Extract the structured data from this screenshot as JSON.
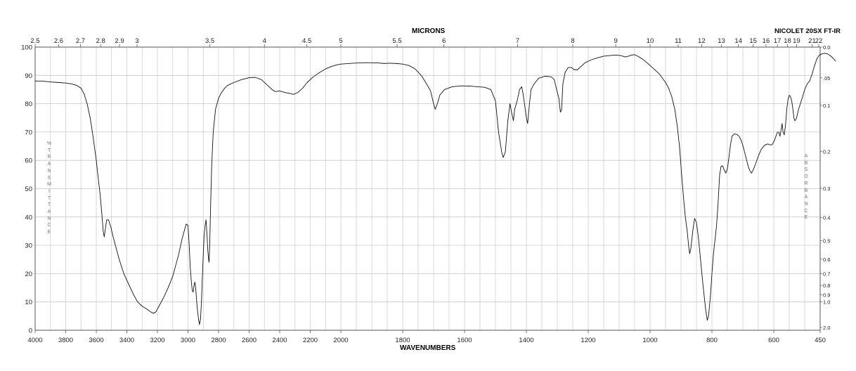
{
  "title_top": "MICRONS",
  "instrument": "NICOLET 20SX FT-IR",
  "xlabel": "WAVENUMBERS",
  "ylabel_left": "%\nT\nR\nA\nN\nS\nM\nI\nT\nT\nA\nN\nC\nE",
  "ylabel_right": "A\nB\nS\nO\nR\nB\nA\nN\nC\nE",
  "chart_data": {
    "type": "line",
    "title": "",
    "xlabel": "WAVENUMBERS",
    "ylabel": "% TRANSMITTANCE",
    "xlim": [
      4000,
      450
    ],
    "ylim": [
      0,
      100
    ],
    "x_axis_break": 2000,
    "grid": true,
    "x_ticks": [
      4000,
      3800,
      3600,
      3400,
      3200,
      3000,
      2800,
      2600,
      2400,
      2200,
      2000,
      1800,
      1600,
      1400,
      1200,
      1000,
      800,
      600,
      450
    ],
    "y_ticks": [
      0,
      10,
      20,
      30,
      40,
      50,
      60,
      70,
      80,
      90,
      100
    ],
    "micron_ticks": [
      {
        "label": "2.5",
        "value": 2.5
      },
      {
        "label": "2.6",
        "value": 2.6
      },
      {
        "label": "2.7",
        "value": 2.7
      },
      {
        "label": "2.8",
        "value": 2.8
      },
      {
        "label": "2.9",
        "value": 2.9
      },
      {
        "label": "3",
        "value": 3
      },
      {
        "label": "3.5",
        "value": 3.5
      },
      {
        "label": "4",
        "value": 4
      },
      {
        "label": "4.5",
        "value": 4.5
      },
      {
        "label": "5",
        "value": 5
      },
      {
        "label": "5.5",
        "value": 5.5
      },
      {
        "label": "6",
        "value": 6
      },
      {
        "label": "7",
        "value": 7
      },
      {
        "label": "8",
        "value": 8
      },
      {
        "label": "9",
        "value": 9
      },
      {
        "label": "10",
        "value": 10
      },
      {
        "label": "11",
        "value": 11
      },
      {
        "label": "12",
        "value": 12
      },
      {
        "label": "13",
        "value": 13
      },
      {
        "label": "14",
        "value": 14
      },
      {
        "label": "15",
        "value": 15
      },
      {
        "label": "16",
        "value": 16
      },
      {
        "label": "17",
        "value": 17
      },
      {
        "label": "18",
        "value": 18
      },
      {
        "label": "19",
        "value": 19
      },
      {
        "label": "21",
        "value": 21
      },
      {
        "label": "22",
        "value": 22
      }
    ],
    "absorbance_ticks": [
      {
        "label": "0.0",
        "value": 0.0
      },
      {
        "label": ".05",
        "value": 0.05
      },
      {
        "label": "0.1",
        "value": 0.1
      },
      {
        "label": "0.2",
        "value": 0.2
      },
      {
        "label": "0.3",
        "value": 0.3
      },
      {
        "label": "0.4",
        "value": 0.4
      },
      {
        "label": "0.5",
        "value": 0.5
      },
      {
        "label": "0.6",
        "value": 0.6
      },
      {
        "label": "0.7",
        "value": 0.7
      },
      {
        "label": "0.8",
        "value": 0.8
      },
      {
        "label": "0.9",
        "value": 0.9
      },
      {
        "label": "1.0",
        "value": 1.0
      },
      {
        "label": "2.0",
        "value": 2.0
      }
    ],
    "series": [
      {
        "points": [
          [
            4000,
            88
          ],
          [
            3960,
            88
          ],
          [
            3900,
            87.7
          ],
          [
            3850,
            87.5
          ],
          [
            3800,
            87.3
          ],
          [
            3760,
            87
          ],
          [
            3730,
            86.5
          ],
          [
            3700,
            85.5
          ],
          [
            3680,
            83.5
          ],
          [
            3660,
            80
          ],
          [
            3640,
            75
          ],
          [
            3620,
            68
          ],
          [
            3600,
            60
          ],
          [
            3590,
            55
          ],
          [
            3575,
            48
          ],
          [
            3562,
            40
          ],
          [
            3555,
            35
          ],
          [
            3548,
            33
          ],
          [
            3540,
            36
          ],
          [
            3532,
            39
          ],
          [
            3520,
            39
          ],
          [
            3505,
            36.5
          ],
          [
            3490,
            33
          ],
          [
            3470,
            29
          ],
          [
            3450,
            25
          ],
          [
            3420,
            20
          ],
          [
            3390,
            16.5
          ],
          [
            3360,
            13
          ],
          [
            3330,
            10
          ],
          [
            3300,
            8.5
          ],
          [
            3270,
            7.5
          ],
          [
            3245,
            6.5
          ],
          [
            3225,
            6
          ],
          [
            3210,
            6.5
          ],
          [
            3190,
            8.5
          ],
          [
            3160,
            11.5
          ],
          [
            3130,
            15
          ],
          [
            3100,
            19
          ],
          [
            3080,
            23
          ],
          [
            3060,
            27
          ],
          [
            3040,
            32
          ],
          [
            3025,
            35
          ],
          [
            3012,
            37.5
          ],
          [
            3000,
            37
          ],
          [
            2992,
            30
          ],
          [
            2985,
            22
          ],
          [
            2978,
            17
          ],
          [
            2972,
            14
          ],
          [
            2966,
            13.5
          ],
          [
            2960,
            16
          ],
          [
            2955,
            17
          ],
          [
            2950,
            15
          ],
          [
            2940,
            8
          ],
          [
            2930,
            3.5
          ],
          [
            2925,
            2
          ],
          [
            2918,
            4
          ],
          [
            2912,
            10
          ],
          [
            2905,
            20
          ],
          [
            2895,
            33
          ],
          [
            2888,
            37
          ],
          [
            2882,
            39
          ],
          [
            2876,
            34
          ],
          [
            2870,
            28
          ],
          [
            2865,
            25
          ],
          [
            2862,
            24
          ],
          [
            2858,
            30
          ],
          [
            2852,
            44
          ],
          [
            2845,
            58
          ],
          [
            2835,
            70
          ],
          [
            2820,
            78
          ],
          [
            2800,
            82
          ],
          [
            2780,
            84
          ],
          [
            2760,
            85.5
          ],
          [
            2740,
            86.5
          ],
          [
            2700,
            87.5
          ],
          [
            2650,
            88.5
          ],
          [
            2600,
            89.2
          ],
          [
            2560,
            89.3
          ],
          [
            2520,
            88.5
          ],
          [
            2480,
            86.5
          ],
          [
            2450,
            85
          ],
          [
            2430,
            84.3
          ],
          [
            2400,
            84.5
          ],
          [
            2370,
            84
          ],
          [
            2340,
            83.7
          ],
          [
            2310,
            83.3
          ],
          [
            2280,
            84
          ],
          [
            2250,
            85.5
          ],
          [
            2220,
            87.5
          ],
          [
            2180,
            89.5
          ],
          [
            2140,
            91
          ],
          [
            2100,
            92.3
          ],
          [
            2060,
            93.2
          ],
          [
            2020,
            93.8
          ],
          [
            2000,
            94
          ],
          [
            1960,
            94.3
          ],
          [
            1920,
            94.5
          ],
          [
            1880,
            94.4
          ],
          [
            1860,
            94.2
          ],
          [
            1840,
            94.3
          ],
          [
            1820,
            94.2
          ],
          [
            1800,
            94
          ],
          [
            1780,
            93.5
          ],
          [
            1760,
            92.3
          ],
          [
            1740,
            90
          ],
          [
            1720,
            86.5
          ],
          [
            1710,
            84.5
          ],
          [
            1700,
            80
          ],
          [
            1695,
            78
          ],
          [
            1688,
            80
          ],
          [
            1680,
            83
          ],
          [
            1665,
            85
          ],
          [
            1640,
            86
          ],
          [
            1610,
            86.3
          ],
          [
            1580,
            86.2
          ],
          [
            1560,
            86
          ],
          [
            1535,
            85.8
          ],
          [
            1515,
            85
          ],
          [
            1500,
            81
          ],
          [
            1490,
            70
          ],
          [
            1480,
            63
          ],
          [
            1475,
            61
          ],
          [
            1468,
            63
          ],
          [
            1460,
            74
          ],
          [
            1453,
            80
          ],
          [
            1448,
            77
          ],
          [
            1442,
            74
          ],
          [
            1438,
            78
          ],
          [
            1430,
            81
          ],
          [
            1422,
            85
          ],
          [
            1415,
            86
          ],
          [
            1410,
            83
          ],
          [
            1400,
            75
          ],
          [
            1396,
            73
          ],
          [
            1390,
            80
          ],
          [
            1385,
            85
          ],
          [
            1375,
            87
          ],
          [
            1360,
            89
          ],
          [
            1340,
            89.7
          ],
          [
            1320,
            89.5
          ],
          [
            1310,
            88.5
          ],
          [
            1300,
            84
          ],
          [
            1295,
            82
          ],
          [
            1290,
            77
          ],
          [
            1286,
            78
          ],
          [
            1282,
            87
          ],
          [
            1275,
            91
          ],
          [
            1265,
            92.8
          ],
          [
            1255,
            92.8
          ],
          [
            1245,
            92
          ],
          [
            1235,
            92
          ],
          [
            1225,
            93
          ],
          [
            1210,
            94.5
          ],
          [
            1190,
            95.5
          ],
          [
            1170,
            96.2
          ],
          [
            1150,
            96.8
          ],
          [
            1130,
            97
          ],
          [
            1110,
            97.2
          ],
          [
            1095,
            97
          ],
          [
            1080,
            96.5
          ],
          [
            1070,
            96.8
          ],
          [
            1060,
            97.2
          ],
          [
            1050,
            97.3
          ],
          [
            1040,
            96.8
          ],
          [
            1025,
            95.8
          ],
          [
            1010,
            94.5
          ],
          [
            1000,
            93.5
          ],
          [
            990,
            92.5
          ],
          [
            970,
            90.5
          ],
          [
            950,
            87.5
          ],
          [
            940,
            85.5
          ],
          [
            930,
            82.5
          ],
          [
            920,
            78
          ],
          [
            912,
            72
          ],
          [
            905,
            65
          ],
          [
            898,
            55
          ],
          [
            892,
            47
          ],
          [
            886,
            40
          ],
          [
            880,
            35
          ],
          [
            875,
            29.5
          ],
          [
            872,
            27
          ],
          [
            868,
            29
          ],
          [
            862,
            35
          ],
          [
            856,
            39.5
          ],
          [
            850,
            38
          ],
          [
            843,
            32
          ],
          [
            836,
            24
          ],
          [
            828,
            15
          ],
          [
            820,
            7
          ],
          [
            815,
            3.5
          ],
          [
            811,
            5
          ],
          [
            805,
            12
          ],
          [
            800,
            20
          ],
          [
            795,
            27
          ],
          [
            790,
            32
          ],
          [
            785,
            37
          ],
          [
            780,
            45
          ],
          [
            775,
            55
          ],
          [
            770,
            58
          ],
          [
            765,
            58
          ],
          [
            760,
            56.5
          ],
          [
            755,
            55.5
          ],
          [
            750,
            57
          ],
          [
            745,
            61
          ],
          [
            740,
            65.5
          ],
          [
            735,
            68.5
          ],
          [
            728,
            69.3
          ],
          [
            720,
            69.2
          ],
          [
            712,
            68.5
          ],
          [
            705,
            67
          ],
          [
            698,
            64.5
          ],
          [
            690,
            61
          ],
          [
            683,
            58
          ],
          [
            678,
            56.5
          ],
          [
            672,
            55.5
          ],
          [
            665,
            57
          ],
          [
            658,
            59
          ],
          [
            650,
            61.5
          ],
          [
            640,
            64
          ],
          [
            630,
            65.3
          ],
          [
            620,
            65.8
          ],
          [
            612,
            65.5
          ],
          [
            605,
            65.5
          ],
          [
            598,
            67
          ],
          [
            593,
            68.5
          ],
          [
            588,
            70
          ],
          [
            584,
            70
          ],
          [
            580,
            68.5
          ],
          [
            576,
            71
          ],
          [
            573,
            73
          ],
          [
            570,
            70
          ],
          [
            566,
            69
          ],
          [
            562,
            72.5
          ],
          [
            558,
            78
          ],
          [
            554,
            81.5
          ],
          [
            550,
            83
          ],
          [
            546,
            82.5
          ],
          [
            542,
            81
          ],
          [
            538,
            78
          ],
          [
            535,
            75
          ],
          [
            532,
            74
          ],
          [
            528,
            74.5
          ],
          [
            524,
            76
          ],
          [
            520,
            78
          ],
          [
            514,
            80
          ],
          [
            508,
            82
          ],
          [
            500,
            85
          ],
          [
            492,
            87
          ],
          [
            484,
            88
          ],
          [
            476,
            90.5
          ],
          [
            468,
            93.5
          ],
          [
            460,
            96
          ],
          [
            452,
            97.2
          ],
          [
            444,
            97.6
          ],
          [
            436,
            97.8
          ],
          [
            428,
            97.7
          ],
          [
            420,
            97.2
          ],
          [
            412,
            96.5
          ],
          [
            406,
            95.8
          ],
          [
            400,
            95
          ]
        ]
      }
    ]
  }
}
